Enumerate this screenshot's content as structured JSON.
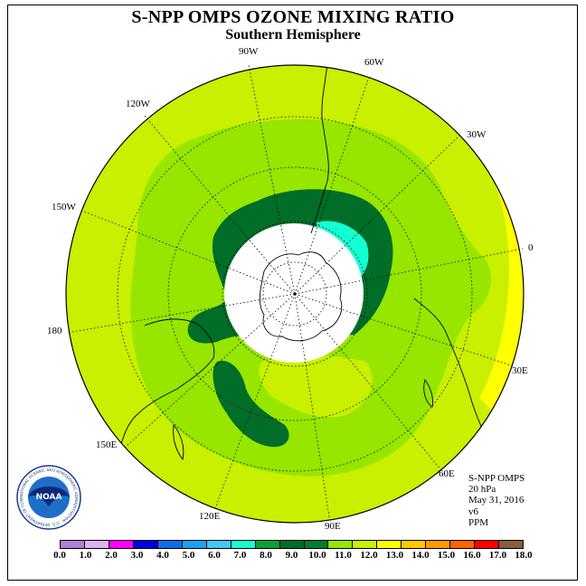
{
  "title": "S-NPP OMPS OZONE MIXING RATIO",
  "subtitle": "Southern Hemisphere",
  "longitude_labels": {
    "w90": "90W",
    "w60": "60W",
    "w30": "30W",
    "w120": "120W",
    "w150": "150W",
    "e0": "0",
    "d180": "180",
    "e30": "30E",
    "e60": "60E",
    "e90": "90E",
    "e120": "120E",
    "e150": "150E"
  },
  "info": {
    "instrument": "S-NPP OMPS",
    "pressure": "20 hPa",
    "date": "May 31, 2016",
    "version": "v6",
    "units": "PPM"
  },
  "logo": {
    "text": "NOAA",
    "ring_text": "NATIONAL OCEANIC AND ATMOSPHERIC ADMINISTRATION · U.S. DEPARTMENT OF COMMERCE"
  },
  "colorbar": {
    "colors": [
      "#b27fd8",
      "#dcb4f0",
      "#ff00ff",
      "#0000e0",
      "#0a6ee6",
      "#1ea0f0",
      "#41c8f5",
      "#14ffd2",
      "#0aa032",
      "#006e28",
      "#007d32",
      "#96e600",
      "#c8f000",
      "#ffff00",
      "#ffc800",
      "#ff9b00",
      "#ff6400",
      "#ff0000",
      "#8c5a3c"
    ],
    "tick_labels": [
      "0.0",
      "1.0",
      "2.0",
      "3.0",
      "4.0",
      "5.0",
      "6.0",
      "7.0",
      "8.0",
      "9.0",
      "10.0",
      "11.0",
      "12.0",
      "13.0",
      "14.0",
      "15.0",
      "16.0",
      "17.0",
      "18.0"
    ]
  },
  "map_colors": {
    "background_level": "#c8f000",
    "mid_level": "#96e600",
    "dark_green": "#006e28",
    "cyan": "#14ffd2",
    "yellow": "#ffff00",
    "missing_data": "#ffffff"
  }
}
